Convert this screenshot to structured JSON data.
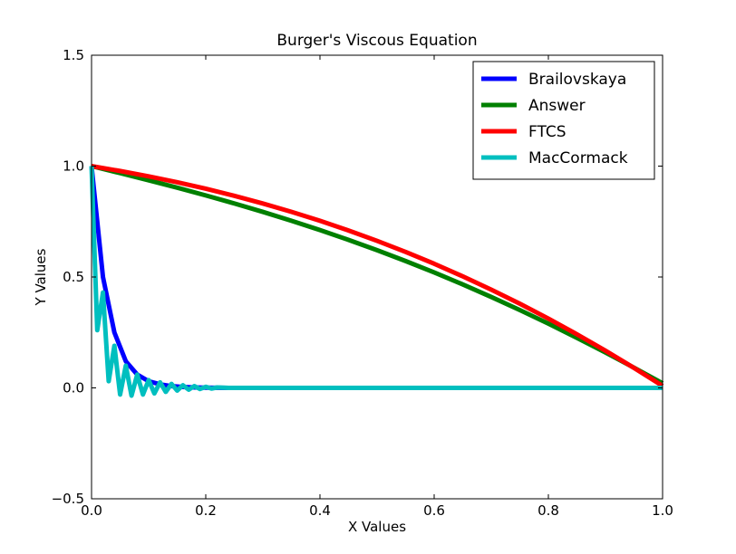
{
  "chart_data": {
    "type": "line",
    "title": "Burger's Viscous Equation",
    "xlabel": "X Values",
    "ylabel": "Y Values",
    "xlim": [
      0.0,
      1.0
    ],
    "ylim": [
      -0.5,
      1.5
    ],
    "x_ticks": [
      0.0,
      0.2,
      0.4,
      0.6,
      0.8,
      1.0
    ],
    "x_tick_labels": [
      "0.0",
      "0.2",
      "0.4",
      "0.6",
      "0.8",
      "1.0"
    ],
    "y_ticks": [
      -0.5,
      0.0,
      0.5,
      1.0,
      1.5
    ],
    "y_tick_labels": [
      "−0.5",
      "0.0",
      "0.5",
      "1.0",
      "1.5"
    ],
    "grid": false,
    "legend_position": "top-right",
    "series": [
      {
        "name": "Brailovskaya",
        "color": "#0000ff",
        "x": [
          0.0,
          0.02,
          0.04,
          0.06,
          0.08,
          0.1,
          0.12,
          0.14,
          0.16,
          0.18,
          0.2,
          0.24,
          0.3,
          0.4,
          0.5,
          0.6,
          0.7,
          0.8,
          0.9,
          1.0
        ],
        "y": [
          1.0,
          0.5,
          0.25,
          0.12,
          0.06,
          0.03,
          0.016,
          0.008,
          0.004,
          0.002,
          0.001,
          0.0,
          0.0,
          0.0,
          0.0,
          0.0,
          0.0,
          0.0,
          0.0,
          0.0
        ]
      },
      {
        "name": "Answer",
        "color": "#008000",
        "x": [
          0.0,
          0.05,
          0.1,
          0.15,
          0.2,
          0.25,
          0.3,
          0.35,
          0.4,
          0.45,
          0.5,
          0.55,
          0.6,
          0.65,
          0.7,
          0.75,
          0.8,
          0.85,
          0.9,
          0.95,
          1.0
        ],
        "y": [
          1.0,
          0.9684,
          0.9361,
          0.9027,
          0.8679,
          0.8316,
          0.7936,
          0.7536,
          0.7116,
          0.6674,
          0.6208,
          0.5719,
          0.5205,
          0.4666,
          0.4101,
          0.3511,
          0.2896,
          0.2257,
          0.1594,
          0.091,
          0.0206
        ]
      },
      {
        "name": "FTCS",
        "color": "#ff0000",
        "x": [
          0.0,
          0.05,
          0.1,
          0.15,
          0.2,
          0.25,
          0.3,
          0.35,
          0.4,
          0.45,
          0.5,
          0.55,
          0.6,
          0.65,
          0.7,
          0.75,
          0.8,
          0.85,
          0.9,
          0.95,
          1.0
        ],
        "y": [
          1.0,
          0.9781,
          0.9539,
          0.9272,
          0.898,
          0.8661,
          0.8315,
          0.7939,
          0.7534,
          0.7098,
          0.663,
          0.613,
          0.5597,
          0.503,
          0.4429,
          0.3794,
          0.3124,
          0.2418,
          0.1677,
          0.0901,
          0.0089
        ]
      },
      {
        "name": "MacCormack",
        "color": "#00bfbf",
        "x": [
          0.0,
          0.01,
          0.02,
          0.03,
          0.04,
          0.05,
          0.06,
          0.07,
          0.08,
          0.09,
          0.1,
          0.11,
          0.12,
          0.13,
          0.14,
          0.15,
          0.16,
          0.17,
          0.18,
          0.19,
          0.2,
          0.21,
          0.22,
          0.24,
          0.3,
          0.4,
          0.5,
          0.6,
          0.7,
          0.8,
          0.9,
          1.0
        ],
        "y": [
          1.0,
          0.26,
          0.43,
          0.03,
          0.19,
          -0.03,
          0.1,
          -0.035,
          0.06,
          -0.03,
          0.035,
          -0.025,
          0.025,
          -0.018,
          0.018,
          -0.012,
          0.012,
          -0.008,
          0.008,
          -0.005,
          0.005,
          -0.003,
          0.002,
          0.0,
          0.0,
          0.0,
          0.0,
          0.0,
          0.0,
          0.0,
          0.0,
          0.0
        ]
      }
    ]
  }
}
